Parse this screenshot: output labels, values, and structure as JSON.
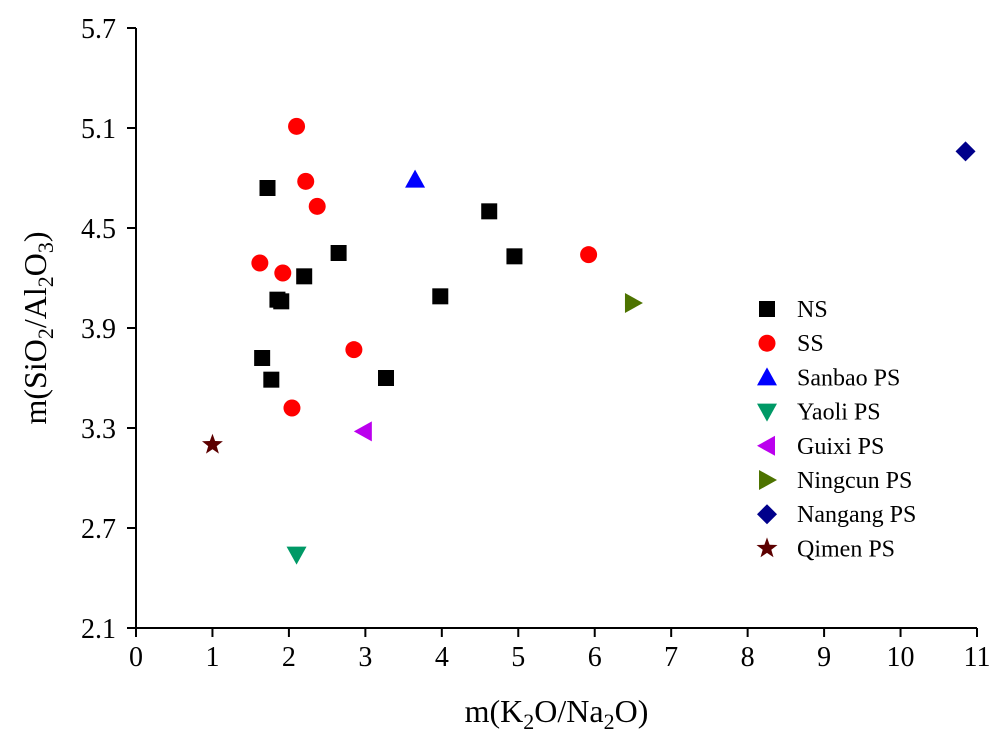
{
  "chart_data": {
    "type": "scatter",
    "xlabel": "m(K₂O/Na₂O)",
    "ylabel": "m(SiO₂/Al₂O₃)",
    "xlim": [
      0,
      11
    ],
    "ylim": [
      2.1,
      5.7
    ],
    "xticks": [
      0,
      1,
      2,
      3,
      4,
      5,
      6,
      7,
      8,
      9,
      10,
      11
    ],
    "yticks": [
      "2.1",
      "2.7",
      "3.3",
      "3.9",
      "4.5",
      "5.1",
      "5.7"
    ],
    "grid": false,
    "legend_position": "right",
    "series": [
      {
        "name": "NS",
        "marker": "square",
        "color": "#000000",
        "points": [
          [
            1.72,
            4.74
          ],
          [
            1.85,
            4.07
          ],
          [
            1.9,
            4.06
          ],
          [
            2.2,
            4.21
          ],
          [
            2.65,
            4.35
          ],
          [
            1.65,
            3.72
          ],
          [
            1.77,
            3.59
          ],
          [
            3.27,
            3.6
          ],
          [
            3.98,
            4.09
          ],
          [
            4.62,
            4.6
          ],
          [
            4.95,
            4.33
          ]
        ]
      },
      {
        "name": "SS",
        "marker": "circle",
        "color": "#ff0000",
        "points": [
          [
            2.1,
            5.11
          ],
          [
            2.22,
            4.78
          ],
          [
            2.37,
            4.63
          ],
          [
            1.62,
            4.29
          ],
          [
            1.92,
            4.23
          ],
          [
            2.85,
            3.77
          ],
          [
            2.04,
            3.42
          ],
          [
            5.92,
            4.34
          ]
        ]
      },
      {
        "name": "Sanbao PS",
        "marker": "triangle-up",
        "color": "#0000ff",
        "points": [
          [
            3.65,
            4.79
          ]
        ]
      },
      {
        "name": "Yaoli PS",
        "marker": "triangle-down",
        "color": "#009966",
        "points": [
          [
            2.1,
            2.54
          ]
        ]
      },
      {
        "name": "Guixi PS",
        "marker": "triangle-left",
        "color": "#bb00ee",
        "points": [
          [
            2.98,
            3.28
          ]
        ]
      },
      {
        "name": "Ningcun PS",
        "marker": "triangle-right",
        "color": "#4d7300",
        "points": [
          [
            6.5,
            4.05
          ]
        ]
      },
      {
        "name": "Nangang PS",
        "marker": "diamond",
        "color": "#00008b",
        "points": [
          [
            10.85,
            4.96
          ]
        ]
      },
      {
        "name": "Qimen PS",
        "marker": "star",
        "color": "#5c0000",
        "points": [
          [
            1.0,
            3.2
          ]
        ]
      }
    ]
  }
}
